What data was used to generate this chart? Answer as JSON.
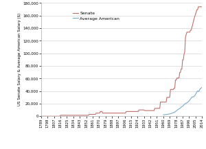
{
  "senate_data": {
    "years": [
      1789,
      1795,
      1796,
      1815,
      1816,
      1817,
      1855,
      1856,
      1865,
      1866,
      1871,
      1872,
      1874,
      1875,
      1907,
      1908,
      1925,
      1926,
      1933,
      1934,
      1947,
      1948,
      1955,
      1956,
      1964,
      1965,
      1969,
      1970,
      1971,
      1972,
      1973,
      1974,
      1975,
      1976,
      1977,
      1978,
      1979,
      1980,
      1981,
      1982,
      1983,
      1984,
      1985,
      1986,
      1987,
      1988,
      1989,
      1990,
      1991,
      1992,
      1993,
      1994,
      1995,
      1996,
      1997,
      1998,
      1999,
      2000,
      2001,
      2002,
      2003,
      2004,
      2005,
      2006,
      2007,
      2008,
      2009,
      2010,
      2011,
      2012,
      2013,
      2014
    ],
    "salary": [
      6,
      6,
      6,
      6,
      1500,
      1500,
      1500,
      3000,
      3000,
      5000,
      5000,
      7500,
      7500,
      5000,
      5000,
      7500,
      7500,
      10000,
      10000,
      9000,
      9000,
      12500,
      12500,
      22500,
      22500,
      30000,
      30000,
      42500,
      42500,
      42500,
      42500,
      42500,
      44600,
      44600,
      57500,
      57500,
      60662,
      60662,
      60662,
      60662,
      69800,
      69800,
      75100,
      75100,
      89500,
      89500,
      98400,
      101900,
      125100,
      129500,
      133600,
      133600,
      133600,
      133600,
      133600,
      136700,
      136700,
      141300,
      145100,
      150000,
      154700,
      158100,
      162100,
      165200,
      169300,
      169300,
      174000,
      174000,
      174000,
      174000,
      174000,
      174000
    ]
  },
  "american_data": {
    "years": [
      1960,
      1961,
      1962,
      1963,
      1964,
      1965,
      1966,
      1967,
      1968,
      1969,
      1970,
      1971,
      1972,
      1973,
      1974,
      1975,
      1976,
      1977,
      1978,
      1979,
      1980,
      1981,
      1982,
      1983,
      1984,
      1985,
      1986,
      1987,
      1988,
      1989,
      1990,
      1991,
      1992,
      1993,
      1994,
      1995,
      1996,
      1997,
      1998,
      1999,
      2000,
      2001,
      2002,
      2003,
      2004,
      2005,
      2006,
      2007,
      2008,
      2009,
      2010,
      2011,
      2012,
      2013,
      2014
    ],
    "income": [
      2283,
      2367,
      2476,
      2590,
      2718,
      2880,
      3080,
      3267,
      3531,
      3836,
      4051,
      4331,
      4776,
      5250,
      5618,
      6087,
      6691,
      7380,
      8371,
      9342,
      10163,
      11149,
      11645,
      12169,
      13383,
      14149,
      14966,
      15814,
      16967,
      18248,
      19477,
      19842,
      20841,
      21404,
      22172,
      23076,
      24175,
      25575,
      27203,
      28546,
      30318,
      30574,
      30808,
      31502,
      32839,
      34471,
      36714,
      38615,
      40147,
      39138,
      40277,
      42326,
      44266,
      44765,
      46049
    ]
  },
  "senate_color": "#c0706a",
  "american_color": "#7aaac8",
  "ylabel": "US Senate Salary & Average American Salary ($)",
  "ylim": [
    0,
    180000
  ],
  "yticks": [
    0,
    20000,
    40000,
    60000,
    80000,
    100000,
    120000,
    140000,
    160000,
    180000
  ],
  "xtick_years": [
    1789,
    1798,
    1807,
    1816,
    1825,
    1834,
    1843,
    1852,
    1861,
    1870,
    1879,
    1888,
    1897,
    1906,
    1915,
    1924,
    1933,
    1942,
    1951,
    1960,
    1969,
    1978,
    1987,
    1996,
    2005,
    2014
  ],
  "legend_senate": "Senate",
  "legend_american": "Average American",
  "background_color": "#ffffff",
  "line_width": 0.8
}
